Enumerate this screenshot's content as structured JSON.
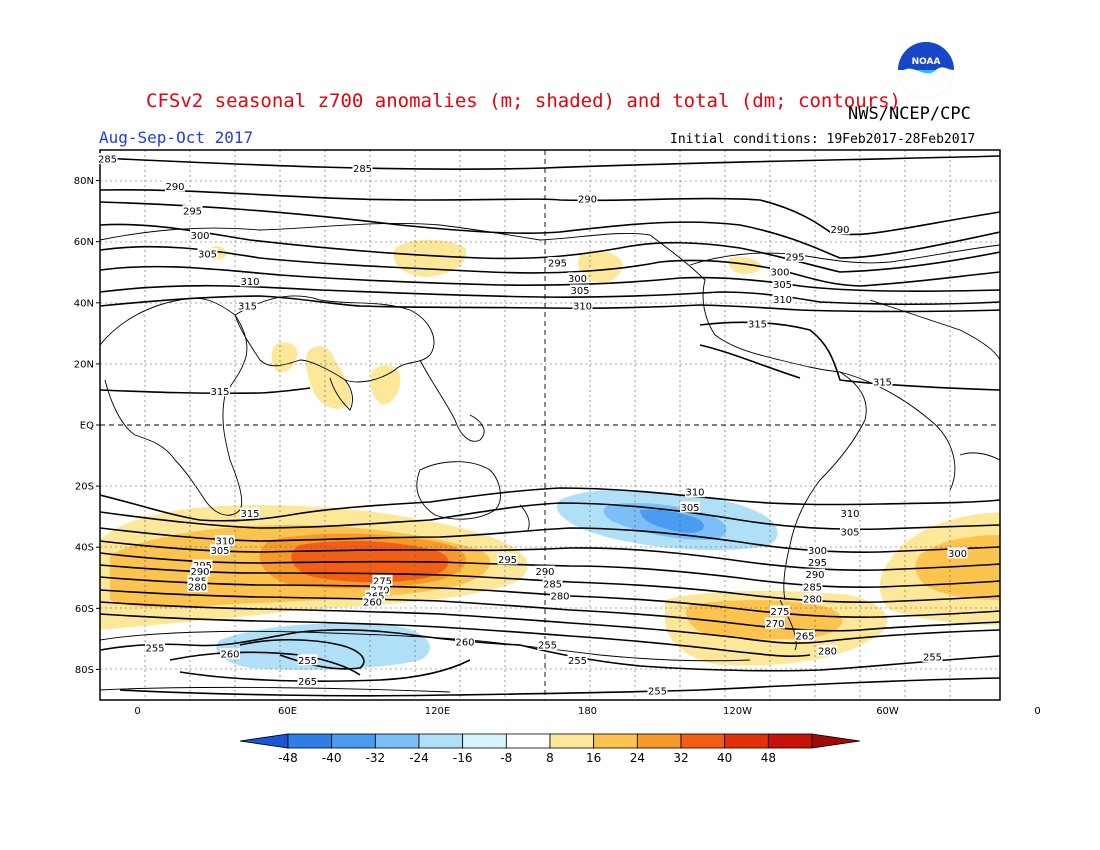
{
  "title": "CFSv2 seasonal z700 anomalies (m; shaded) and total (dm; contours)",
  "agency": "NWS/NCEP/CPC",
  "season": "Aug-Sep-Oct 2017",
  "initial_conditions": "Initial conditions: 19Feb2017-28Feb2017",
  "logo_text": "NOAA",
  "lat_labels": [
    "80N",
    "60N",
    "40N",
    "20N",
    "EQ",
    "20S",
    "40S",
    "60S",
    "80S"
  ],
  "lon_labels": [
    "0",
    "60E",
    "120E",
    "180",
    "120W",
    "60W",
    "0"
  ],
  "colorbar": {
    "ticks": [
      "-48",
      "-40",
      "-32",
      "-24",
      "-16",
      "-8",
      "8",
      "16",
      "24",
      "32",
      "40",
      "48"
    ],
    "colors": [
      "#1a55d9",
      "#2e7ee8",
      "#4a9cf0",
      "#7cbef6",
      "#b0e0f8",
      "#d8f5fb",
      "#ffffff",
      "#fde89a",
      "#fcc34e",
      "#f89a2a",
      "#f25f14",
      "#e23008",
      "#c61306",
      "#a00a04"
    ]
  },
  "contour_labels": [
    {
      "text": "285",
      "lon": -12,
      "lat": 87
    },
    {
      "text": "285",
      "lon": 90,
      "lat": 84
    },
    {
      "text": "290",
      "lon": 15,
      "lat": 78
    },
    {
      "text": "290",
      "lon": 180,
      "lat": 74
    },
    {
      "text": "290",
      "lon": -79,
      "lat": 64
    },
    {
      "text": "295",
      "lon": 22,
      "lat": 70
    },
    {
      "text": "300",
      "lon": 25,
      "lat": 62
    },
    {
      "text": "305",
      "lon": 28,
      "lat": 56
    },
    {
      "text": "295",
      "lon": 168,
      "lat": 53
    },
    {
      "text": "300",
      "lon": 176,
      "lat": 48
    },
    {
      "text": "305",
      "lon": 177,
      "lat": 44
    },
    {
      "text": "310",
      "lon": 178,
      "lat": 39
    },
    {
      "text": "295",
      "lon": -97,
      "lat": 55
    },
    {
      "text": "300",
      "lon": -103,
      "lat": 50
    },
    {
      "text": "305",
      "lon": -102,
      "lat": 46
    },
    {
      "text": "310",
      "lon": -102,
      "lat": 41
    },
    {
      "text": "310",
      "lon": 45,
      "lat": 47
    },
    {
      "text": "315",
      "lon": 44,
      "lat": 39
    },
    {
      "text": "315",
      "lon": -112,
      "lat": 33
    },
    {
      "text": "315",
      "lon": -62,
      "lat": 14
    },
    {
      "text": "315",
      "lon": 33,
      "lat": 11
    },
    {
      "text": "315",
      "lon": 45,
      "lat": -29
    },
    {
      "text": "310",
      "lon": -137,
      "lat": -22
    },
    {
      "text": "305",
      "lon": -139,
      "lat": -27
    },
    {
      "text": "310",
      "lon": -75,
      "lat": -29
    },
    {
      "text": "305",
      "lon": -75,
      "lat": -35
    },
    {
      "text": "300",
      "lon": -88,
      "lat": -41
    },
    {
      "text": "295",
      "lon": -88,
      "lat": -45
    },
    {
      "text": "290",
      "lon": -89,
      "lat": -49
    },
    {
      "text": "285",
      "lon": -90,
      "lat": -53
    },
    {
      "text": "280",
      "lon": -90,
      "lat": -57
    },
    {
      "text": "275",
      "lon": -103,
      "lat": -61
    },
    {
      "text": "270",
      "lon": -105,
      "lat": -65
    },
    {
      "text": "265",
      "lon": -93,
      "lat": -69
    },
    {
      "text": "280",
      "lon": -84,
      "lat": -74
    },
    {
      "text": "310",
      "lon": 35,
      "lat": -38
    },
    {
      "text": "305",
      "lon": 33,
      "lat": -41
    },
    {
      "text": "300",
      "lon": -32,
      "lat": -42
    },
    {
      "text": "295",
      "lon": 148,
      "lat": -44
    },
    {
      "text": "290",
      "lon": 163,
      "lat": -48
    },
    {
      "text": "285",
      "lon": 166,
      "lat": -52
    },
    {
      "text": "280",
      "lon": 169,
      "lat": -56
    },
    {
      "text": "295",
      "lon": 26,
      "lat": -46
    },
    {
      "text": "290",
      "lon": 25,
      "lat": -48
    },
    {
      "text": "285",
      "lon": 24,
      "lat": -51
    },
    {
      "text": "280",
      "lon": 24,
      "lat": -53
    },
    {
      "text": "275",
      "lon": 98,
      "lat": -51
    },
    {
      "text": "270",
      "lon": 97,
      "lat": -54
    },
    {
      "text": "265",
      "lon": 95,
      "lat": -56
    },
    {
      "text": "260",
      "lon": 94,
      "lat": -58
    },
    {
      "text": "255",
      "lon": 7,
      "lat": -73
    },
    {
      "text": "260",
      "lon": 37,
      "lat": -75
    },
    {
      "text": "255",
      "lon": 68,
      "lat": -77
    },
    {
      "text": "265",
      "lon": 68,
      "lat": -84
    },
    {
      "text": "260",
      "lon": 131,
      "lat": -71
    },
    {
      "text": "255",
      "lon": 164,
      "lat": -72
    },
    {
      "text": "255",
      "lon": 176,
      "lat": -77
    },
    {
      "text": "255",
      "lon": -152,
      "lat": -87
    },
    {
      "text": "255",
      "lon": -42,
      "lat": -76
    }
  ]
}
